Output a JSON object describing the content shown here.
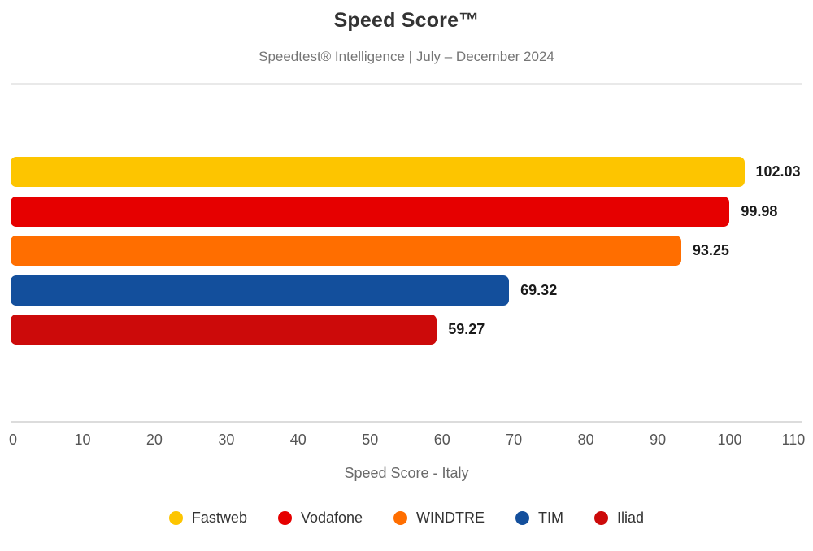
{
  "header": {
    "title": "Speed Score™",
    "subtitle": "Speedtest® Intelligence | July – December 2024"
  },
  "chart_data": {
    "type": "bar",
    "orientation": "horizontal",
    "title": "Speed Score™",
    "subtitle": "Speedtest® Intelligence | July – December 2024",
    "xlabel": "Speed Score - Italy",
    "xlim": [
      0,
      110
    ],
    "xticks": [
      "0",
      "10",
      "20",
      "30",
      "40",
      "50",
      "60",
      "70",
      "80",
      "90",
      "100",
      "110"
    ],
    "grid": false,
    "legend_position": "bottom",
    "categories": [
      "Fastweb",
      "Vodafone",
      "WINDTRE",
      "TIM",
      "Iliad"
    ],
    "values": [
      102.03,
      99.98,
      93.25,
      69.32,
      59.27
    ],
    "bars": [
      {
        "label": "Fastweb",
        "value": 102.03,
        "value_label": "102.03",
        "color": "#fdc500"
      },
      {
        "label": "Vodafone",
        "value": 99.98,
        "value_label": "99.98",
        "color": "#e60000"
      },
      {
        "label": "WINDTRE",
        "value": 93.25,
        "value_label": "93.25",
        "color": "#ff6e00"
      },
      {
        "label": "TIM",
        "value": 69.32,
        "value_label": "69.32",
        "color": "#134f9c"
      },
      {
        "label": "Iliad",
        "value": 59.27,
        "value_label": "59.27",
        "color": "#cc0a0a"
      }
    ]
  }
}
